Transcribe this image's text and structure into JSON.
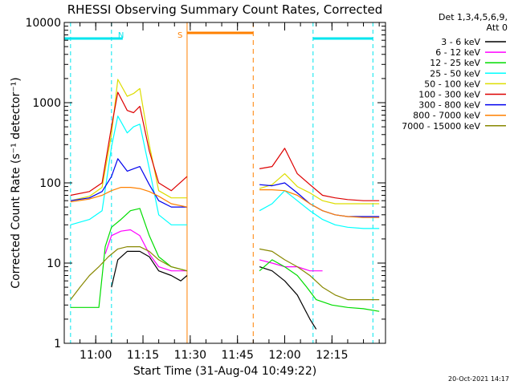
{
  "chart_data": {
    "type": "line",
    "title": "RHESSI Observing Summary Count Rates, Corrected",
    "xlabel": "Start Time (31-Aug-04 10:49:22)",
    "ylabel": "Corrected Count Rate (s⁻¹ detector⁻¹)",
    "y_scale": "log",
    "ylim": [
      1,
      10000
    ],
    "xlim": [
      "10:50",
      "12:32"
    ],
    "y_ticks": [
      "1",
      "10",
      "100",
      "1000",
      "10000"
    ],
    "x_ticks": [
      "11:00",
      "11:15",
      "11:30",
      "11:45",
      "12:00",
      "12:15"
    ],
    "legend_header": [
      "Det 1,3,4,5,6,9,",
      "Att 0"
    ],
    "legend_position": "right",
    "timestamp": "20-Oct-2021 14:17",
    "markers": [
      {
        "label": "N",
        "type": "night",
        "start": "10:52",
        "end": "11:05",
        "color": "#00e5ee"
      },
      {
        "label": "S",
        "type": "saa",
        "start": "11:29",
        "end": "11:50",
        "color": "#ff8000"
      },
      {
        "label": "",
        "type": "night",
        "start": "12:09",
        "end": "12:28",
        "color": "#00e5ee"
      }
    ],
    "segments": [
      [
        "10:52",
        "11:29"
      ],
      [
        "11:52",
        "12:30"
      ]
    ],
    "series": [
      {
        "name": "3 - 6 keV",
        "color": "#000000",
        "segments": [
          {
            "t": [
              "10:52",
              "11:02",
              "11:05",
              "11:07",
              "11:10",
              "11:14",
              "11:17",
              "11:20",
              "11:24",
              "11:27",
              "11:29"
            ],
            "y": [
              null,
              null,
              5,
              11,
              14,
              14,
              12,
              8,
              7,
              6,
              7
            ]
          },
          {
            "t": [
              "11:52",
              "11:56",
              "12:00",
              "12:04",
              "12:08",
              "12:10"
            ],
            "y": [
              9,
              8,
              6,
              4,
              2,
              1.5
            ]
          }
        ]
      },
      {
        "name": "6 - 12 keV",
        "color": "#ff00ff",
        "segments": [
          {
            "t": [
              "10:52",
              "11:00",
              "11:03",
              "11:05",
              "11:08",
              "11:11",
              "11:14",
              "11:17",
              "11:20",
              "11:24",
              "11:29"
            ],
            "y": [
              null,
              null,
              13,
              22,
              25,
              26,
              22,
              13,
              9,
              8,
              8
            ]
          },
          {
            "t": [
              "11:52",
              "11:56",
              "12:00",
              "12:04",
              "12:08",
              "12:12"
            ],
            "y": [
              11,
              10,
              9,
              9,
              8,
              8
            ]
          }
        ]
      },
      {
        "name": "12 - 25 keV",
        "color": "#00dd00",
        "segments": [
          {
            "t": [
              "10:52",
              "10:58",
              "11:01",
              "11:03",
              "11:05",
              "11:08",
              "11:11",
              "11:14",
              "11:17",
              "11:20",
              "11:24",
              "11:29"
            ],
            "y": [
              2.8,
              2.8,
              2.8,
              16,
              28,
              35,
              45,
              48,
              22,
              12,
              9,
              8
            ]
          },
          {
            "t": [
              "11:52",
              "11:56",
              "12:00",
              "12:04",
              "12:07",
              "12:10",
              "12:15",
              "12:20",
              "12:25",
              "12:30"
            ],
            "y": [
              8,
              11,
              9,
              7,
              5,
              3.5,
              3,
              2.8,
              2.7,
              2.5
            ]
          }
        ]
      },
      {
        "name": "25 - 50 keV",
        "color": "#00ffff",
        "segments": [
          {
            "t": [
              "10:52",
              "10:58",
              "11:02",
              "11:05",
              "11:07",
              "11:10",
              "11:12",
              "11:14",
              "11:17",
              "11:20",
              "11:24",
              "11:29"
            ],
            "y": [
              30,
              35,
              45,
              280,
              680,
              420,
              500,
              540,
              150,
              40,
              30,
              30
            ]
          },
          {
            "t": [
              "11:52",
              "11:56",
              "12:00",
              "12:04",
              "12:08",
              "12:12",
              "12:16",
              "12:20",
              "12:25",
              "12:30"
            ],
            "y": [
              45,
              55,
              80,
              60,
              45,
              35,
              30,
              28,
              27,
              27
            ]
          }
        ]
      },
      {
        "name": "50 - 100 keV",
        "color": "#dddd00",
        "segments": [
          {
            "t": [
              "10:52",
              "10:58",
              "11:02",
              "11:05",
              "11:07",
              "11:10",
              "11:12",
              "11:14",
              "11:17",
              "11:20",
              "11:24",
              "11:29"
            ],
            "y": [
              60,
              68,
              88,
              400,
              1950,
              1200,
              1300,
              1500,
              300,
              80,
              65,
              65
            ]
          },
          {
            "t": [
              "11:52",
              "11:56",
              "12:00",
              "12:04",
              "12:08",
              "12:12",
              "12:16",
              "12:20",
              "12:25",
              "12:30"
            ],
            "y": [
              85,
              95,
              130,
              90,
              75,
              60,
              55,
              55,
              55,
              55
            ]
          }
        ]
      },
      {
        "name": "100 - 300 keV",
        "color": "#dd0000",
        "segments": [
          {
            "t": [
              "10:52",
              "10:58",
              "11:02",
              "11:05",
              "11:07",
              "11:10",
              "11:12",
              "11:14",
              "11:17",
              "11:20",
              "11:24",
              "11:29"
            ],
            "y": [
              70,
              78,
              100,
              500,
              1350,
              800,
              750,
              900,
              250,
              100,
              80,
              120
            ]
          },
          {
            "t": [
              "11:52",
              "11:56",
              "12:00",
              "12:04",
              "12:08",
              "12:12",
              "12:16",
              "12:20",
              "12:25",
              "12:30"
            ],
            "y": [
              150,
              160,
              270,
              130,
              95,
              70,
              65,
              62,
              60,
              60
            ]
          }
        ]
      },
      {
        "name": "300 - 800 keV",
        "color": "#0000ee",
        "segments": [
          {
            "t": [
              "10:52",
              "10:58",
              "11:02",
              "11:05",
              "11:07",
              "11:10",
              "11:12",
              "11:14",
              "11:17",
              "11:20",
              "11:24",
              "11:29"
            ],
            "y": [
              60,
              65,
              78,
              120,
              200,
              140,
              150,
              160,
              95,
              60,
              50,
              50
            ]
          },
          {
            "t": [
              "11:52",
              "11:56",
              "12:00",
              "12:04",
              "12:08",
              "12:12",
              "12:16",
              "12:20",
              "12:25",
              "12:30"
            ],
            "y": [
              95,
              92,
              100,
              75,
              55,
              45,
              40,
              38,
              38,
              38
            ]
          }
        ]
      },
      {
        "name": "800 - 7000 keV",
        "color": "#ff8000",
        "segments": [
          {
            "t": [
              "10:52",
              "10:58",
              "11:02",
              "11:05",
              "11:08",
              "11:11",
              "11:14",
              "11:17",
              "11:20",
              "11:24",
              "11:29"
            ],
            "y": [
              58,
              63,
              70,
              80,
              88,
              88,
              85,
              78,
              68,
              55,
              50
            ]
          },
          {
            "t": [
              "11:52",
              "11:56",
              "12:00",
              "12:04",
              "12:08",
              "12:12",
              "12:16",
              "12:20",
              "12:25",
              "12:30"
            ],
            "y": [
              82,
              82,
              80,
              70,
              55,
              45,
              40,
              38,
              37,
              37
            ]
          }
        ]
      },
      {
        "name": "7000 - 15000 keV",
        "color": "#888800",
        "segments": [
          {
            "t": [
              "10:52",
              "10:55",
              "10:58",
              "11:01",
              "11:04",
              "11:07",
              "11:10",
              "11:14",
              "11:17",
              "11:20",
              "11:24",
              "11:29"
            ],
            "y": [
              3.5,
              5,
              7,
              9,
              12,
              15,
              16,
              16,
              14,
              11,
              9,
              8
            ]
          },
          {
            "t": [
              "11:52",
              "11:56",
              "12:00",
              "12:04",
              "12:08",
              "12:12",
              "12:16",
              "12:20",
              "12:25",
              "12:30"
            ],
            "y": [
              15,
              14,
              11,
              9,
              7,
              5,
              4,
              3.5,
              3.5,
              3.5
            ]
          }
        ]
      }
    ]
  }
}
